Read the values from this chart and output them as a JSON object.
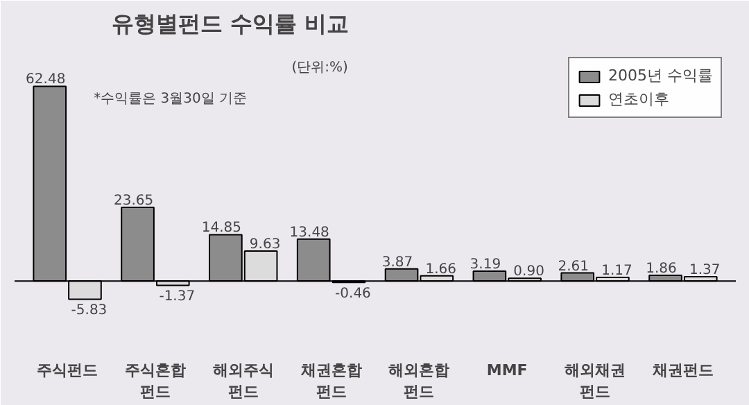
{
  "chart_data": {
    "type": "bar",
    "title": "유형별펀드 수익률 비교",
    "subtitle": "(단위:%)",
    "annotations": [
      "*수익률은 3월30일 기준"
    ],
    "categories": [
      "주식펀드",
      "주식혼합\n펀드",
      "해외주식\n펀드",
      "채권혼합\n펀드",
      "해외혼합\n펀드",
      "MMF",
      "해외채권\n펀드",
      "채권펀드"
    ],
    "series": [
      {
        "name": "2005년 수익률",
        "color": "#8c8c8c",
        "values": [
          62.48,
          23.65,
          14.85,
          13.48,
          3.87,
          3.19,
          2.61,
          1.86
        ],
        "value_labels": [
          "62.48",
          "23.65",
          "14.85",
          "13.48",
          "3.87",
          "3.19",
          "2.61",
          "1.86"
        ]
      },
      {
        "name": "연초이후",
        "color": "#dcdcdc",
        "values": [
          -5.83,
          -1.37,
          9.63,
          -0.46,
          1.66,
          0.9,
          1.17,
          1.37
        ],
        "value_labels": [
          "-5.83",
          "-1.37",
          "9.63",
          "-0.46",
          "1.66",
          "0.90",
          "1.17",
          "1.37"
        ]
      }
    ],
    "legend": "top right",
    "grid": false
  }
}
